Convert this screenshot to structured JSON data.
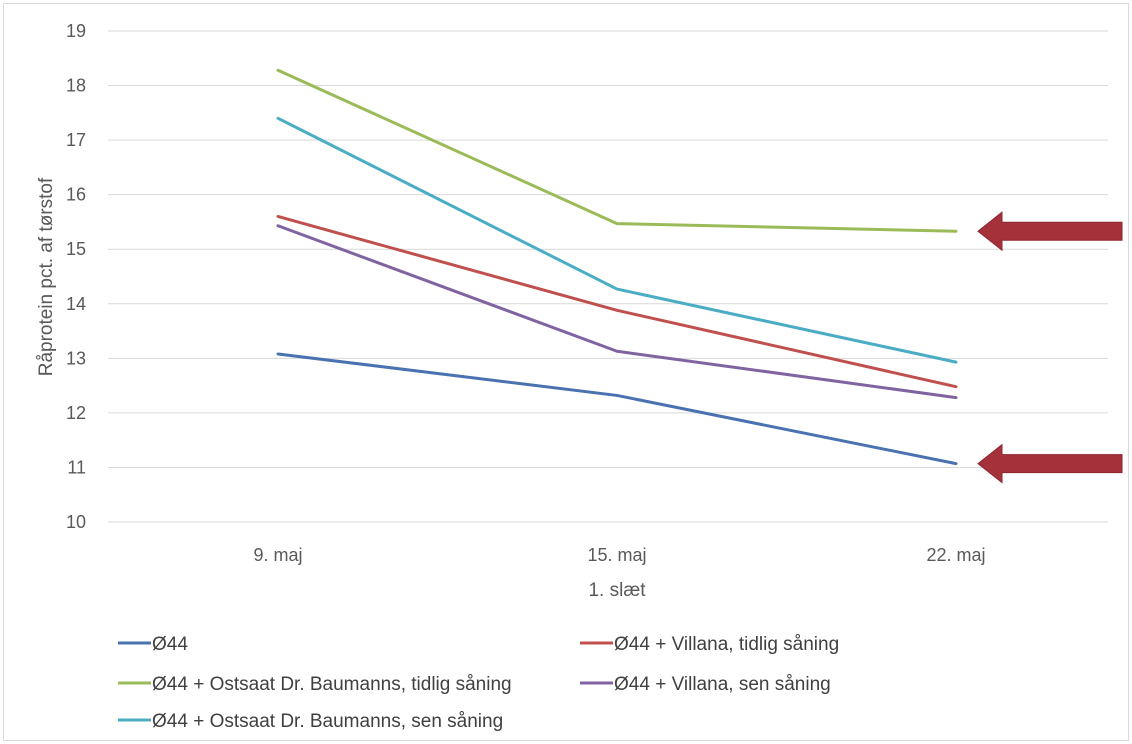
{
  "chart_data": {
    "type": "line",
    "categories": [
      "9. maj",
      "15. maj",
      "22. maj"
    ],
    "series": [
      {
        "name": "Ø44",
        "color": "#4a72b0",
        "values": [
          13.08,
          12.32,
          11.07
        ]
      },
      {
        "name": "Ø44 + Villana, tidlig såning",
        "color": "#c0504d",
        "values": [
          15.6,
          13.88,
          12.48
        ]
      },
      {
        "name": "Ø44 + Ostsaat Dr. Baumanns, tidlig såning",
        "color": "#9bbb59",
        "values": [
          18.28,
          15.47,
          15.33
        ]
      },
      {
        "name": "Ø44 + Villana, sen såning",
        "color": "#8064a2",
        "values": [
          15.43,
          13.13,
          12.28
        ]
      },
      {
        "name": "Ø44 + Ostsaat Dr. Baumanns, sen såning",
        "color": "#4bacc6",
        "values": [
          17.4,
          14.27,
          12.93
        ]
      }
    ],
    "yticks": [
      10,
      11,
      12,
      13,
      14,
      15,
      16,
      17,
      18,
      19
    ],
    "ylim": [
      10,
      19
    ],
    "xlabel": "1. slæt",
    "ylabel": "Råprotein pct. af tørstof",
    "grid": true,
    "legend_position": "bottom",
    "annotations": [
      {
        "type": "arrow",
        "color": "#a5313b",
        "points_to_series": "Ø44 + Ostsaat Dr. Baumanns, tidlig såning"
      },
      {
        "type": "arrow",
        "color": "#a5313b",
        "points_to_series": "Ø44"
      }
    ]
  }
}
